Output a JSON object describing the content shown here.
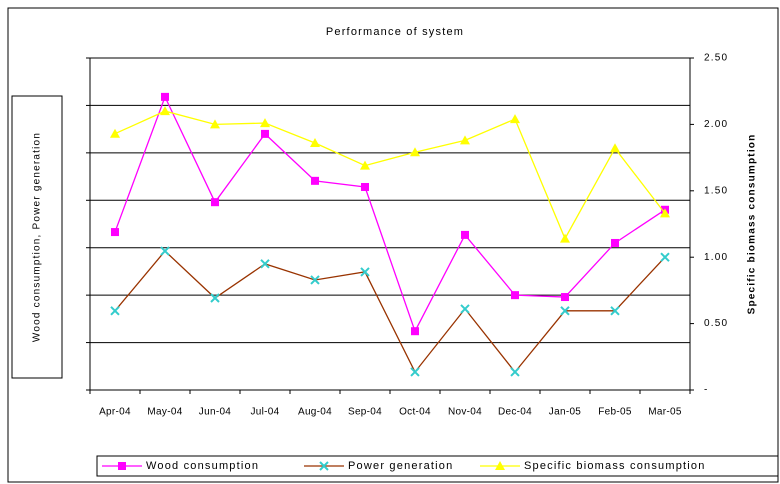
{
  "chart_data": {
    "type": "line",
    "title": "Performance of system",
    "y_label": "Wood consumption, Power generation",
    "y2_label": "Specific biomass consumption",
    "categories": [
      "Apr-04",
      "May-04",
      "Jun-04",
      "Jul-04",
      "Aug-04",
      "Sep-04",
      "Oct-04",
      "Nov-04",
      "Dec-04",
      "Jan-05",
      "Feb-05",
      "Mar-05"
    ],
    "series": [
      {
        "name": "Wood consumption",
        "color": "#ff00ff",
        "marker": "square",
        "values": [
          3.33,
          6.18,
          3.96,
          5.4,
          4.41,
          4.28,
          1.24,
          3.27,
          2.0,
          1.96,
          3.1,
          3.8
        ]
      },
      {
        "name": "Power generation",
        "color": "#993300",
        "marker_color": "#33cccc",
        "marker": "x",
        "values": [
          1.67,
          2.93,
          1.94,
          2.66,
          2.32,
          2.49,
          0.38,
          1.71,
          0.38,
          1.67,
          1.67,
          2.8
        ]
      },
      {
        "name": "Specific biomass consumption",
        "color": "#ffff00",
        "marker": "triangle",
        "axis": "y2",
        "values": [
          1.93,
          2.1,
          2.0,
          2.01,
          1.86,
          1.69,
          1.79,
          1.88,
          2.04,
          1.14,
          1.82,
          1.33
        ]
      }
    ],
    "ylim": [
      0,
      7
    ],
    "yticks": [
      0,
      1,
      2,
      3,
      4,
      5,
      6,
      7
    ],
    "y2lim": [
      0,
      2.5
    ],
    "y2ticks": [
      {
        "value": 0,
        "label": "-"
      },
      {
        "value": 0.5,
        "label": "0.50"
      },
      {
        "value": 1,
        "label": "1.00"
      },
      {
        "value": 1.5,
        "label": "1.50"
      },
      {
        "value": 2,
        "label": "2.00"
      },
      {
        "value": 2.5,
        "label": "2.50"
      }
    ],
    "grid": true,
    "legend": "bottom"
  }
}
